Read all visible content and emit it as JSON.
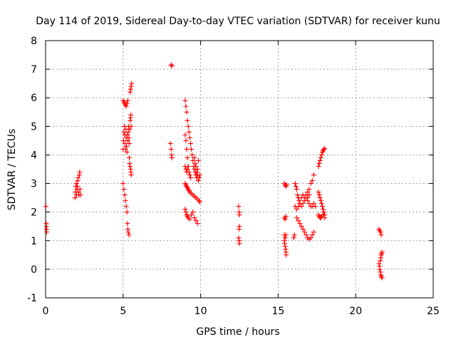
{
  "chart_data": {
    "type": "scatter",
    "title": "Day 114 of 2019, Sidereal Day-to-day VTEC variation (SDTVAR) for receiver kunu",
    "xlabel": "GPS time / hours",
    "ylabel": "SDTVAR / TECUs",
    "xlim": [
      0,
      25
    ],
    "ylim": [
      -1,
      8
    ],
    "xticks": [
      0,
      5,
      10,
      15,
      20,
      25
    ],
    "yticks": [
      -1,
      0,
      1,
      2,
      3,
      4,
      5,
      6,
      7,
      8
    ],
    "xtick_labels": [
      "0",
      "5",
      "10",
      "15",
      "20",
      "25"
    ],
    "ytick_labels": [
      "-1",
      "0",
      "1",
      "2",
      "3",
      "4",
      "5",
      "6",
      "7",
      "8"
    ],
    "grid": true,
    "marker": "plus",
    "series": [
      {
        "color": "#ff0000",
        "points": [
          [
            0.02,
            2.2
          ],
          [
            0.04,
            1.6
          ],
          [
            0.05,
            1.5
          ],
          [
            0.06,
            1.4
          ],
          [
            0.07,
            1.3
          ],
          [
            1.9,
            2.5
          ],
          [
            1.92,
            2.7
          ],
          [
            1.95,
            2.9
          ],
          [
            1.98,
            3.0
          ],
          [
            2.0,
            2.6
          ],
          [
            2.02,
            2.8
          ],
          [
            2.05,
            2.9
          ],
          [
            2.08,
            3.1
          ],
          [
            2.1,
            3.2
          ],
          [
            2.12,
            2.7
          ],
          [
            2.15,
            2.6
          ],
          [
            2.18,
            3.3
          ],
          [
            2.2,
            3.4
          ],
          [
            2.22,
            2.8
          ],
          [
            2.25,
            2.6
          ],
          [
            5.0,
            3.0
          ],
          [
            5.05,
            2.8
          ],
          [
            5.1,
            2.6
          ],
          [
            5.15,
            2.4
          ],
          [
            5.2,
            2.2
          ],
          [
            5.25,
            2.0
          ],
          [
            5.28,
            1.6
          ],
          [
            5.3,
            1.4
          ],
          [
            5.33,
            1.3
          ],
          [
            5.38,
            1.2
          ],
          [
            5.0,
            5.9
          ],
          [
            5.05,
            5.85
          ],
          [
            5.1,
            5.8
          ],
          [
            5.15,
            5.75
          ],
          [
            5.2,
            5.7
          ],
          [
            5.25,
            5.8
          ],
          [
            5.3,
            5.9
          ],
          [
            5.0,
            4.2
          ],
          [
            5.02,
            4.5
          ],
          [
            5.05,
            4.8
          ],
          [
            5.08,
            5.0
          ],
          [
            5.1,
            4.7
          ],
          [
            5.12,
            4.4
          ],
          [
            5.15,
            4.2
          ],
          [
            5.18,
            4.9
          ],
          [
            5.2,
            4.6
          ],
          [
            5.22,
            4.3
          ],
          [
            5.25,
            4.1
          ],
          [
            5.28,
            4.7
          ],
          [
            5.3,
            4.5
          ],
          [
            5.33,
            4.8
          ],
          [
            5.35,
            5.0
          ],
          [
            5.38,
            4.6
          ],
          [
            5.4,
            4.4
          ],
          [
            5.42,
            4.9
          ],
          [
            5.4,
            3.9
          ],
          [
            5.42,
            3.7
          ],
          [
            5.45,
            3.6
          ],
          [
            5.48,
            3.5
          ],
          [
            5.5,
            3.4
          ],
          [
            5.52,
            3.3
          ],
          [
            5.45,
            5.2
          ],
          [
            5.48,
            5.3
          ],
          [
            5.5,
            5.4
          ],
          [
            5.52,
            5.0
          ],
          [
            5.45,
            6.2
          ],
          [
            5.48,
            6.3
          ],
          [
            5.52,
            6.4
          ],
          [
            5.55,
            6.5
          ],
          [
            8.1,
            7.15
          ],
          [
            8.15,
            7.12
          ],
          [
            8.05,
            4.4
          ],
          [
            8.1,
            4.2
          ],
          [
            8.12,
            4.0
          ],
          [
            8.15,
            3.9
          ],
          [
            9.0,
            5.9
          ],
          [
            9.05,
            5.7
          ],
          [
            9.1,
            5.5
          ],
          [
            9.15,
            5.2
          ],
          [
            9.2,
            5.0
          ],
          [
            9.25,
            4.8
          ],
          [
            9.3,
            4.6
          ],
          [
            9.35,
            4.4
          ],
          [
            9.4,
            4.2
          ],
          [
            9.45,
            4.0
          ],
          [
            9.5,
            3.8
          ],
          [
            9.55,
            3.6
          ],
          [
            9.6,
            3.5
          ],
          [
            9.65,
            3.4
          ],
          [
            9.7,
            3.3
          ],
          [
            9.75,
            3.2
          ],
          [
            9.8,
            3.5
          ],
          [
            9.85,
            3.8
          ],
          [
            9.0,
            4.7
          ],
          [
            9.05,
            4.5
          ],
          [
            9.1,
            4.2
          ],
          [
            9.15,
            3.9
          ],
          [
            9.2,
            3.6
          ],
          [
            9.25,
            3.4
          ],
          [
            9.3,
            3.3
          ],
          [
            9.35,
            3.2
          ],
          [
            9.0,
            3.6
          ],
          [
            9.05,
            3.5
          ],
          [
            9.1,
            3.4
          ],
          [
            9.15,
            3.5
          ],
          [
            9.2,
            3.6
          ],
          [
            9.0,
            3.0
          ],
          [
            9.05,
            2.95
          ],
          [
            9.1,
            2.9
          ],
          [
            9.15,
            2.85
          ],
          [
            9.2,
            2.8
          ],
          [
            9.25,
            2.75
          ],
          [
            9.3,
            2.7
          ],
          [
            9.4,
            2.65
          ],
          [
            9.5,
            2.6
          ],
          [
            9.6,
            2.55
          ],
          [
            9.7,
            2.5
          ],
          [
            9.8,
            2.45
          ],
          [
            9.9,
            2.4
          ],
          [
            9.95,
            2.35
          ],
          [
            9.6,
            3.9
          ],
          [
            9.65,
            3.7
          ],
          [
            9.7,
            3.6
          ],
          [
            9.75,
            3.4
          ],
          [
            9.8,
            3.3
          ],
          [
            9.85,
            3.1
          ],
          [
            9.9,
            3.2
          ],
          [
            9.95,
            3.3
          ],
          [
            9.0,
            2.1
          ],
          [
            9.05,
            2.0
          ],
          [
            9.1,
            1.9
          ],
          [
            9.15,
            1.85
          ],
          [
            9.2,
            1.8
          ],
          [
            9.3,
            1.75
          ],
          [
            9.4,
            1.9
          ],
          [
            9.5,
            2.0
          ],
          [
            9.6,
            1.8
          ],
          [
            9.7,
            1.7
          ],
          [
            9.8,
            1.6
          ],
          [
            12.45,
            2.2
          ],
          [
            12.48,
            2.0
          ],
          [
            12.5,
            1.9
          ],
          [
            12.5,
            1.5
          ],
          [
            12.48,
            1.4
          ],
          [
            12.45,
            1.1
          ],
          [
            12.48,
            1.0
          ],
          [
            12.5,
            0.9
          ],
          [
            15.4,
            3.0
          ],
          [
            15.45,
            2.95
          ],
          [
            15.5,
            2.9
          ],
          [
            15.55,
            2.95
          ],
          [
            15.4,
            1.8
          ],
          [
            15.45,
            1.75
          ],
          [
            15.5,
            1.85
          ],
          [
            15.4,
            1.2
          ],
          [
            15.45,
            1.1
          ],
          [
            15.5,
            1.2
          ],
          [
            15.4,
            1.0
          ],
          [
            15.42,
            0.9
          ],
          [
            15.45,
            0.8
          ],
          [
            15.48,
            0.7
          ],
          [
            15.5,
            0.6
          ],
          [
            15.52,
            0.5
          ],
          [
            16.0,
            1.1
          ],
          [
            16.05,
            1.2
          ],
          [
            16.1,
            3.0
          ],
          [
            16.15,
            2.9
          ],
          [
            16.2,
            2.8
          ],
          [
            16.25,
            2.6
          ],
          [
            16.3,
            2.5
          ],
          [
            16.35,
            2.4
          ],
          [
            16.4,
            2.3
          ],
          [
            16.5,
            2.5
          ],
          [
            16.6,
            2.6
          ],
          [
            16.7,
            2.5
          ],
          [
            16.8,
            2.6
          ],
          [
            16.9,
            2.5
          ],
          [
            17.0,
            2.6
          ],
          [
            16.1,
            2.2
          ],
          [
            16.2,
            2.1
          ],
          [
            16.3,
            2.2
          ],
          [
            16.4,
            2.3
          ],
          [
            16.5,
            2.2
          ],
          [
            16.6,
            2.3
          ],
          [
            16.7,
            2.4
          ],
          [
            16.8,
            2.5
          ],
          [
            16.9,
            2.7
          ],
          [
            17.0,
            2.8
          ],
          [
            17.1,
            3.0
          ],
          [
            17.2,
            3.1
          ],
          [
            17.3,
            3.3
          ],
          [
            16.9,
            2.4
          ],
          [
            17.0,
            2.3
          ],
          [
            17.1,
            2.2
          ],
          [
            17.2,
            2.2
          ],
          [
            17.3,
            2.3
          ],
          [
            17.4,
            2.2
          ],
          [
            16.2,
            1.8
          ],
          [
            16.3,
            1.7
          ],
          [
            16.4,
            1.6
          ],
          [
            16.5,
            1.5
          ],
          [
            16.6,
            1.4
          ],
          [
            16.7,
            1.3
          ],
          [
            16.8,
            1.2
          ],
          [
            16.9,
            1.1
          ],
          [
            17.0,
            1.05
          ],
          [
            17.1,
            1.1
          ],
          [
            17.2,
            1.2
          ],
          [
            17.3,
            1.3
          ],
          [
            17.6,
            3.6
          ],
          [
            17.65,
            3.7
          ],
          [
            17.7,
            3.8
          ],
          [
            17.75,
            3.9
          ],
          [
            17.8,
            4.0
          ],
          [
            17.85,
            4.1
          ],
          [
            17.9,
            4.15
          ],
          [
            17.95,
            4.2
          ],
          [
            18.0,
            4.22
          ],
          [
            17.6,
            2.7
          ],
          [
            17.65,
            2.6
          ],
          [
            17.7,
            2.5
          ],
          [
            17.75,
            2.4
          ],
          [
            17.8,
            2.3
          ],
          [
            17.85,
            2.2
          ],
          [
            17.9,
            2.1
          ],
          [
            17.95,
            2.0
          ],
          [
            18.0,
            1.9
          ],
          [
            17.6,
            1.9
          ],
          [
            17.65,
            1.85
          ],
          [
            17.7,
            1.8
          ],
          [
            17.75,
            1.8
          ],
          [
            17.8,
            1.85
          ],
          [
            17.9,
            1.9
          ],
          [
            18.0,
            1.8
          ],
          [
            21.5,
            1.4
          ],
          [
            21.55,
            1.35
          ],
          [
            21.6,
            1.3
          ],
          [
            21.65,
            1.2
          ],
          [
            21.5,
            0.2
          ],
          [
            21.55,
            0.1
          ],
          [
            21.55,
            0.0
          ],
          [
            21.6,
            -0.1
          ],
          [
            21.62,
            -0.2
          ],
          [
            21.65,
            -0.25
          ],
          [
            21.7,
            -0.3
          ],
          [
            21.6,
            0.3
          ],
          [
            21.62,
            0.4
          ],
          [
            21.65,
            0.5
          ],
          [
            21.68,
            0.55
          ],
          [
            21.7,
            0.6
          ]
        ]
      }
    ]
  }
}
